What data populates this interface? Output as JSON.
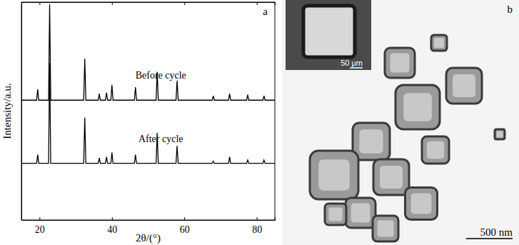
{
  "chart_data": {
    "type": "line",
    "panel_label": "a",
    "x_label": "2θ/(°)",
    "y_label": "Intensity/a.u.",
    "x": [
      15,
      19.2,
      19.5,
      19.8,
      22.5,
      22.8,
      23.1,
      32.2,
      32.5,
      32.8,
      36.2,
      36.5,
      36.8,
      38.2,
      38.5,
      38.8,
      39.7,
      40.0,
      40.3,
      46.2,
      46.5,
      46.8,
      52.2,
      52.5,
      52.8,
      57.7,
      58.0,
      58.3,
      67.7,
      68.0,
      68.3,
      72.2,
      72.5,
      72.8,
      77.2,
      77.5,
      77.8,
      81.7,
      82.0,
      82.3,
      85
    ],
    "series": [
      {
        "name": "Before cycle",
        "color": "#000000",
        "values": [
          55,
          55,
          60,
          55,
          55,
          99,
          55,
          55,
          74,
          55,
          55,
          58,
          55,
          55,
          58.5,
          55,
          55,
          62,
          55,
          55,
          61,
          55,
          55,
          68,
          55,
          55,
          64,
          55,
          55,
          57,
          55,
          55,
          58,
          55,
          55,
          57.5,
          55,
          55,
          57,
          55,
          55
        ]
      },
      {
        "name": "After cycle",
        "color": "#000000",
        "values": [
          26,
          26,
          30,
          26,
          26,
          72,
          26,
          26,
          47,
          26,
          26,
          28.5,
          26,
          26,
          29,
          26,
          26,
          31,
          26,
          26,
          30,
          26,
          26,
          40,
          26,
          26,
          34,
          26,
          26,
          27,
          26,
          26,
          29,
          26,
          26,
          27.5,
          26,
          26,
          27.5,
          26,
          26
        ]
      }
    ],
    "xlim": [
      15,
      85
    ],
    "xticks": [
      20,
      40,
      60,
      80
    ],
    "ylim": [
      0,
      100
    ],
    "tick_labels": "x",
    "grid": false,
    "line_style": "solid"
  },
  "image_panel": {
    "label": "b",
    "scale_bar": "500 nm",
    "inset_scale_bar": "50 μm"
  }
}
